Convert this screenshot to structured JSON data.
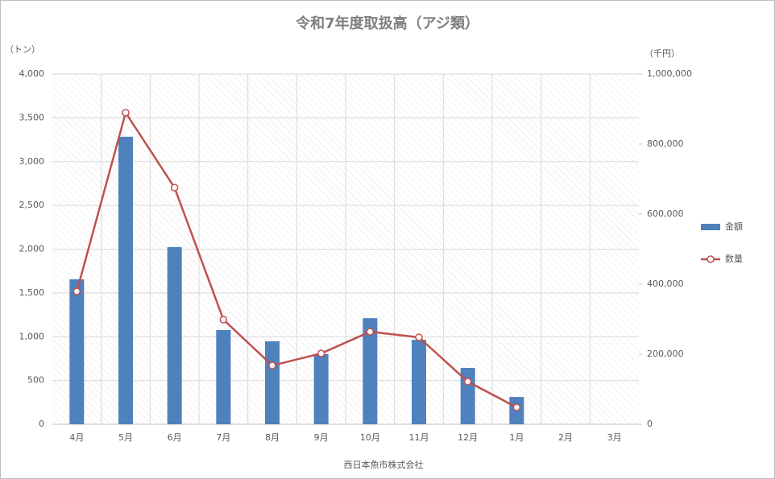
{
  "chart_data": {
    "type": "bar_line",
    "title": "令和7年度取扱高（アジ類）",
    "y_label": "（トン）",
    "y2_label": "（千円）",
    "x_label": "西日本魚市株式会社",
    "categories": [
      "4月",
      "5月",
      "6月",
      "7月",
      "8月",
      "9月",
      "10月",
      "11月",
      "12月",
      "1月",
      "2月",
      "3月"
    ],
    "series": [
      {
        "name": "金額",
        "type": "bar",
        "axis": "y2",
        "color": "#4f81bd",
        "values": [
          414000,
          821000,
          506000,
          269000,
          237000,
          200000,
          303000,
          241000,
          161000,
          78000,
          null,
          null
        ]
      },
      {
        "name": "数量",
        "type": "line",
        "color": "#c0504d",
        "values": [
          1517,
          3559,
          2703,
          1195,
          671,
          809,
          1057,
          993,
          487,
          193,
          null,
          null
        ]
      }
    ],
    "ylim": [
      0,
      4000
    ],
    "yticks": [
      0,
      500,
      {
        "value": 1000,
        "label": "1,000"
      },
      {
        "value": 1500,
        "label": "1,500"
      },
      {
        "value": 2000,
        "label": "2,000"
      },
      {
        "value": 2500,
        "label": "2,500"
      },
      {
        "value": 3000,
        "label": "3,000"
      },
      {
        "value": 3500,
        "label": "3,500"
      },
      {
        "value": 4000,
        "label": "4,000"
      }
    ],
    "y2lim": [
      0,
      1000000
    ],
    "y2ticks": [
      0,
      {
        "value": 200000,
        "label": "200,000"
      },
      {
        "value": 400000,
        "label": "400,000"
      },
      {
        "value": 600000,
        "label": "600,000"
      },
      {
        "value": 800000,
        "label": "800,000"
      },
      {
        "value": 1000000,
        "label": "1,000,000"
      }
    ],
    "grid": true,
    "legend": "right"
  }
}
